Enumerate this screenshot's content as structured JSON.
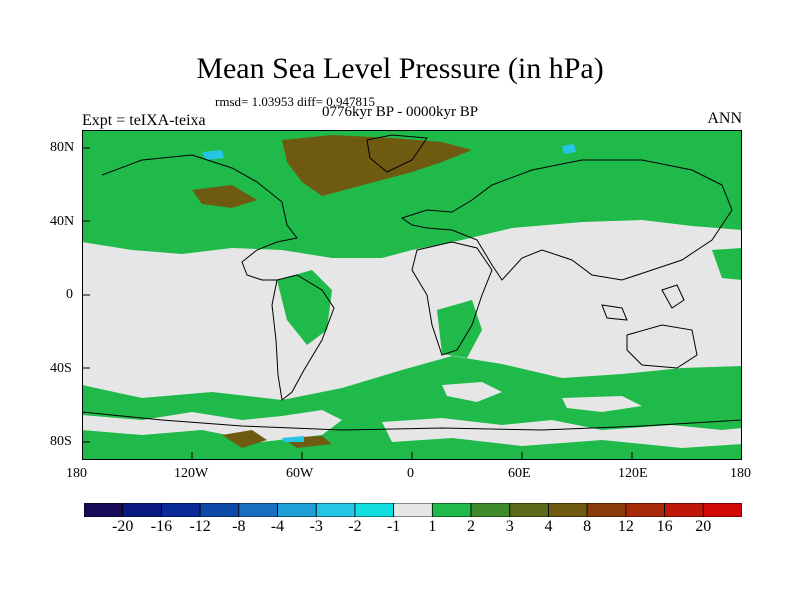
{
  "title": "Mean Sea Level Pressure (in hPa)",
  "stats": "rmsd= 1.03953 diff= 0.947815",
  "period": "0776kyr BP - 0000kyr BP",
  "experiment": "Expt = teIXA-teixa",
  "season": "ANN",
  "lat_labels": [
    "80N",
    "40N",
    "0",
    "40S",
    "80S"
  ],
  "lon_labels": [
    "180",
    "120W",
    "60W",
    "0",
    "60E",
    "120E",
    "180"
  ],
  "colorbar": {
    "labels": [
      "-20",
      "-16",
      "-12",
      "-8",
      "-4",
      "-3",
      "-2",
      "-1",
      "1",
      "2",
      "3",
      "4",
      "8",
      "12",
      "16",
      "20"
    ],
    "colors": [
      "#1a0a5a",
      "#0a1a80",
      "#0a2a9a",
      "#0f4aa8",
      "#1b6fc0",
      "#1ea0d6",
      "#25c5e6",
      "#10dde0",
      "#e6e6e6",
      "#1fba4a",
      "#3f8a2a",
      "#5a6a18",
      "#6e5a10",
      "#8a3d0a",
      "#a62a08",
      "#c01808",
      "#d20808"
    ]
  },
  "colors": {
    "ocean_neutral": "#e6e6e6",
    "positive_small": "#1fba4a",
    "positive_mid": "#6e5a10",
    "negative_small": "#25c5e6"
  }
}
